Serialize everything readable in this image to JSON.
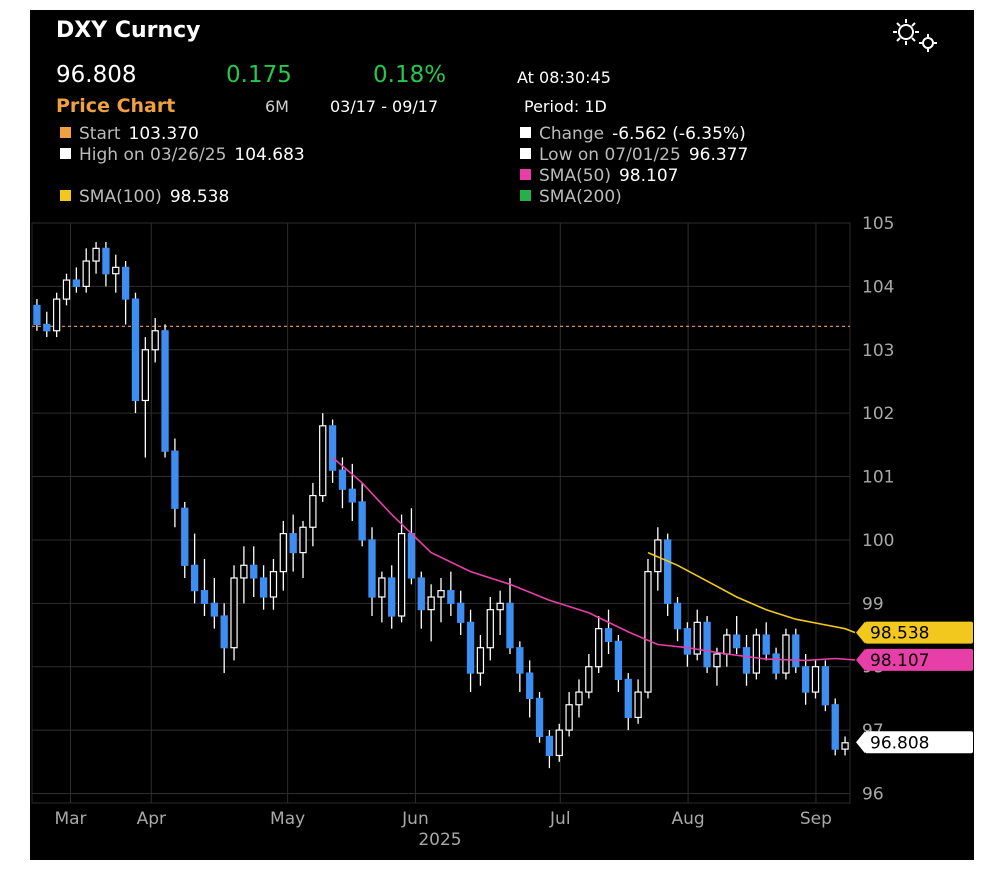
{
  "header": {
    "title": "DXY Curncy",
    "price": "96.808",
    "change": "0.175",
    "change_pct": "0.18%",
    "as_of": "At 08:30:45",
    "chart_label": "Price Chart",
    "range": "6M",
    "dates": "03/17 - 09/17",
    "period": "Period: 1D",
    "settings_icon": "gear-icon"
  },
  "legend": [
    {
      "label": "Start",
      "value": "103.370",
      "color": "#f0a040"
    },
    {
      "label": "Change",
      "value": "-6.562 (-6.35%)",
      "color": "#ffffff"
    },
    {
      "label": "High on 03/26/25",
      "value": "104.683",
      "color": "#ffffff"
    },
    {
      "label": "Low on 07/01/25",
      "value": "96.377",
      "color": "#ffffff"
    },
    {
      "label": "SMA(50)",
      "value": "98.107",
      "color": "#e83ea8"
    },
    {
      "label": "SMA(100)",
      "value": "98.538",
      "color": "#f2c81f"
    },
    {
      "label": "SMA(200)",
      "value": "",
      "color": "#26b04a"
    }
  ],
  "chart_data": {
    "type": "candlestick",
    "ylim": [
      95.85,
      105
    ],
    "y_ticks": [
      105,
      104,
      103,
      102,
      101,
      100,
      99,
      98,
      97,
      96
    ],
    "x_ticks": [
      "Mar",
      "Apr",
      "May",
      "Jun",
      "Jul",
      "Aug",
      "Sep"
    ],
    "x_year": "2025",
    "start_level": 103.37,
    "grid": true,
    "up_color": "#ffffff",
    "down_color": "#3d8ef0",
    "badges": [
      {
        "value": "98.538",
        "color": "#f2c81f"
      },
      {
        "value": "98.107",
        "color": "#e83ea8"
      },
      {
        "value": "96.808",
        "color": "#ffffff"
      }
    ],
    "ohlc": [
      [
        103.7,
        103.8,
        103.3,
        103.4
      ],
      [
        103.4,
        103.6,
        103.2,
        103.3
      ],
      [
        103.3,
        103.9,
        103.2,
        103.8
      ],
      [
        103.8,
        104.2,
        103.7,
        104.1
      ],
      [
        104.1,
        104.3,
        103.9,
        104.0
      ],
      [
        104.0,
        104.6,
        103.9,
        104.4
      ],
      [
        104.4,
        104.7,
        104.2,
        104.6
      ],
      [
        104.6,
        104.7,
        104.0,
        104.2
      ],
      [
        104.2,
        104.5,
        103.9,
        104.3
      ],
      [
        104.3,
        104.4,
        103.4,
        103.8
      ],
      [
        103.8,
        103.9,
        102.0,
        102.2
      ],
      [
        102.2,
        103.2,
        101.3,
        103.0
      ],
      [
        103.0,
        103.5,
        102.8,
        103.3
      ],
      [
        103.3,
        103.4,
        101.3,
        101.4
      ],
      [
        101.4,
        101.6,
        100.2,
        100.5
      ],
      [
        100.5,
        100.6,
        99.4,
        99.6
      ],
      [
        99.6,
        100.1,
        99.0,
        99.2
      ],
      [
        99.2,
        99.7,
        98.8,
        99.0
      ],
      [
        99.0,
        99.4,
        98.6,
        98.8
      ],
      [
        98.8,
        99.0,
        97.9,
        98.3
      ],
      [
        98.3,
        99.6,
        98.1,
        99.4
      ],
      [
        99.4,
        99.9,
        99.0,
        99.6
      ],
      [
        99.6,
        99.9,
        99.1,
        99.4
      ],
      [
        99.4,
        99.6,
        98.9,
        99.1
      ],
      [
        99.1,
        99.7,
        98.9,
        99.5
      ],
      [
        99.5,
        100.3,
        99.2,
        100.1
      ],
      [
        100.1,
        100.4,
        99.5,
        99.8
      ],
      [
        99.8,
        100.3,
        99.4,
        100.2
      ],
      [
        100.2,
        100.9,
        99.9,
        100.7
      ],
      [
        100.7,
        102.0,
        100.6,
        101.8
      ],
      [
        101.8,
        101.9,
        100.9,
        101.1
      ],
      [
        101.1,
        101.3,
        100.5,
        100.8
      ],
      [
        100.8,
        101.2,
        100.3,
        100.6
      ],
      [
        100.6,
        100.9,
        99.9,
        100.0
      ],
      [
        100.0,
        100.2,
        98.8,
        99.1
      ],
      [
        99.1,
        99.5,
        98.7,
        99.4
      ],
      [
        99.4,
        99.6,
        98.6,
        98.8
      ],
      [
        98.8,
        100.4,
        98.7,
        100.1
      ],
      [
        100.1,
        100.5,
        99.3,
        99.4
      ],
      [
        99.4,
        99.5,
        98.6,
        98.9
      ],
      [
        98.9,
        99.3,
        98.4,
        99.1
      ],
      [
        99.1,
        99.4,
        98.7,
        99.2
      ],
      [
        99.2,
        99.5,
        98.8,
        99.0
      ],
      [
        99.0,
        99.2,
        98.5,
        98.7
      ],
      [
        98.7,
        98.9,
        97.6,
        97.9
      ],
      [
        97.9,
        98.5,
        97.7,
        98.3
      ],
      [
        98.3,
        99.1,
        98.1,
        98.9
      ],
      [
        98.9,
        99.2,
        98.5,
        99.0
      ],
      [
        99.0,
        99.4,
        98.2,
        98.3
      ],
      [
        98.3,
        98.4,
        97.6,
        97.9
      ],
      [
        97.9,
        98.1,
        97.2,
        97.5
      ],
      [
        97.5,
        97.6,
        96.8,
        96.9
      ],
      [
        96.9,
        97.0,
        96.4,
        96.6
      ],
      [
        96.6,
        97.1,
        96.5,
        97.0
      ],
      [
        97.0,
        97.6,
        96.9,
        97.4
      ],
      [
        97.4,
        97.8,
        97.2,
        97.6
      ],
      [
        97.6,
        98.2,
        97.5,
        98.0
      ],
      [
        98.0,
        98.8,
        97.9,
        98.6
      ],
      [
        98.6,
        98.9,
        98.2,
        98.4
      ],
      [
        98.4,
        98.5,
        97.6,
        97.8
      ],
      [
        97.8,
        97.9,
        97.0,
        97.2
      ],
      [
        97.2,
        97.8,
        97.1,
        97.6
      ],
      [
        97.6,
        99.7,
        97.5,
        99.5
      ],
      [
        99.5,
        100.2,
        99.2,
        100.0
      ],
      [
        100.0,
        100.1,
        98.8,
        99.0
      ],
      [
        99.0,
        99.1,
        98.4,
        98.6
      ],
      [
        98.6,
        98.7,
        98.0,
        98.2
      ],
      [
        98.2,
        98.9,
        98.1,
        98.7
      ],
      [
        98.7,
        98.8,
        97.9,
        98.0
      ],
      [
        98.0,
        98.3,
        97.7,
        98.2
      ],
      [
        98.2,
        98.6,
        98.0,
        98.5
      ],
      [
        98.5,
        98.8,
        98.2,
        98.3
      ],
      [
        98.3,
        98.5,
        97.7,
        97.9
      ],
      [
        97.9,
        98.6,
        97.8,
        98.5
      ],
      [
        98.5,
        98.7,
        98.1,
        98.2
      ],
      [
        98.2,
        98.3,
        97.8,
        97.9
      ],
      [
        97.9,
        98.6,
        97.8,
        98.5
      ],
      [
        98.5,
        98.6,
        97.9,
        98.0
      ],
      [
        98.0,
        98.2,
        97.4,
        97.6
      ],
      [
        97.6,
        98.1,
        97.5,
        98.0
      ],
      [
        98.0,
        98.1,
        97.3,
        97.4
      ],
      [
        97.4,
        97.5,
        96.6,
        96.7
      ],
      [
        96.7,
        96.9,
        96.6,
        96.8
      ]
    ],
    "sma100": [
      [
        62,
        99.8
      ],
      [
        65,
        99.6
      ],
      [
        68,
        99.35
      ],
      [
        71,
        99.1
      ],
      [
        74,
        98.9
      ],
      [
        77,
        98.75
      ],
      [
        80,
        98.66
      ],
      [
        82,
        98.6
      ],
      [
        83,
        98.54
      ]
    ],
    "sma50": [
      [
        30,
        101.3
      ],
      [
        33,
        100.9
      ],
      [
        36,
        100.4
      ],
      [
        40,
        99.8
      ],
      [
        44,
        99.5
      ],
      [
        48,
        99.3
      ],
      [
        52,
        99.05
      ],
      [
        56,
        98.85
      ],
      [
        60,
        98.55
      ],
      [
        63,
        98.35
      ],
      [
        66,
        98.3
      ],
      [
        70,
        98.2
      ],
      [
        74,
        98.12
      ],
      [
        78,
        98.1
      ],
      [
        81,
        98.13
      ],
      [
        83,
        98.107
      ]
    ]
  }
}
